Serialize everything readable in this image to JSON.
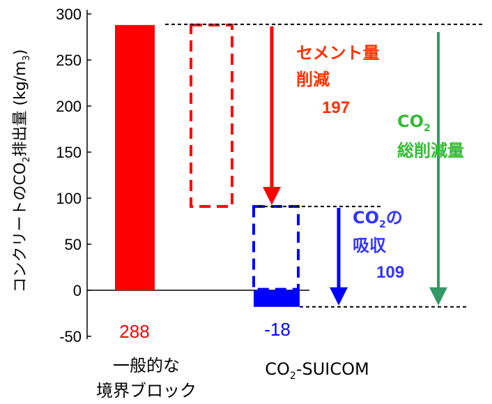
{
  "chart_data": {
    "type": "bar",
    "ylabel_main": "コンクリートのCO",
    "ylabel_sub": "2",
    "ylabel_tail": "排出量 (kg/m",
    "ylabel_unit_sub": "3",
    "ylabel_close": ")",
    "ylim": [
      -50,
      300
    ],
    "yticks": [
      300,
      250,
      200,
      150,
      100,
      50,
      0,
      -50
    ],
    "categories": [
      {
        "line1": "一般的な",
        "line2": "境界ブロック"
      },
      {
        "prefix": "CO",
        "sub": "2",
        "suffix": "-SUICOM"
      }
    ],
    "values": [
      288,
      -18
    ],
    "value_labels": [
      "288",
      "-18"
    ],
    "colors": {
      "bar1": "#ff0000",
      "bar2": "#0000ff",
      "green": "#339966"
    },
    "annotations": {
      "cement": {
        "line1": "セメント量",
        "line2": "削減",
        "value": "197",
        "color": "#ff3300"
      },
      "absorb": {
        "line1_prefix": "CO",
        "line1_sub": "2",
        "line1_suffix": "の",
        "line2": "吸収",
        "value": "109",
        "color": "#3333ff"
      },
      "total": {
        "line1_prefix": "CO",
        "line1_sub": "2",
        "line2": "総削減量",
        "color": "#33bb33"
      }
    }
  }
}
